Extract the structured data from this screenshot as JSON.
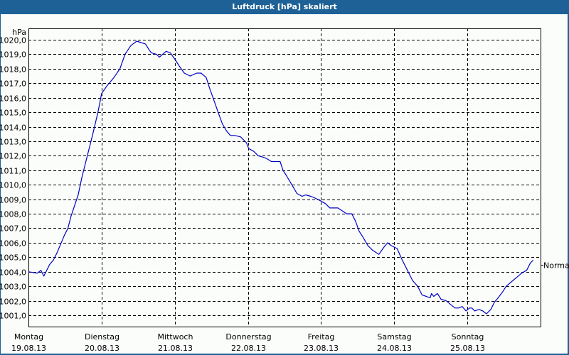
{
  "window": {
    "title": "Luftdruck [hPa] skaliert",
    "title_bar_color": "#1d6196",
    "background_color": "#fbfdfb"
  },
  "chart_data": {
    "type": "line",
    "title": "Luftdruck [hPa] skaliert",
    "xlabel": "",
    "ylabel": "hPa",
    "ylim": [
      1000.2,
      1020.8
    ],
    "y_ticks": [
      "1020,0",
      "1019,0",
      "1018,0",
      "1017,0",
      "1016,0",
      "1015,0",
      "1014,0",
      "1013,0",
      "1012,0",
      "1011,0",
      "1010,0",
      "1009,0",
      "1008,0",
      "1007,0",
      "1006,0",
      "1005,0",
      "1004,0",
      "1003,0",
      "1002,0",
      "1001,0"
    ],
    "y_tick_values": [
      1020,
      1019,
      1018,
      1017,
      1016,
      1015,
      1014,
      1013,
      1012,
      1011,
      1010,
      1009,
      1008,
      1007,
      1006,
      1005,
      1004,
      1003,
      1002,
      1001
    ],
    "x_ticks": [
      {
        "day": "Montag",
        "date": "19.08.13"
      },
      {
        "day": "Dienstag",
        "date": "20.08.13"
      },
      {
        "day": "Mittwoch",
        "date": "21.08.13"
      },
      {
        "day": "Donnerstag",
        "date": "22.08.13"
      },
      {
        "day": "Freitag",
        "date": "23.08.13"
      },
      {
        "day": "Samstag",
        "date": "24.08.13"
      },
      {
        "day": "Sonntag",
        "date": "25.08.13"
      }
    ],
    "xlim_days": [
      0,
      7
    ],
    "grid": true,
    "grid_style": "dashed",
    "reference_line": {
      "label": "Normal",
      "value": 1004.5
    },
    "series": [
      {
        "name": "Luftdruck",
        "color": "#0000c8",
        "x_days": [
          0.0,
          0.12,
          0.17,
          0.21,
          0.29,
          0.34,
          0.39,
          0.49,
          0.54,
          0.58,
          0.68,
          0.73,
          0.78,
          0.88,
          0.95,
          1.0,
          1.07,
          1.17,
          1.25,
          1.32,
          1.4,
          1.48,
          1.6,
          1.65,
          1.68,
          1.75,
          1.79,
          1.88,
          1.94,
          2.01,
          2.06,
          2.13,
          2.21,
          2.3,
          2.36,
          2.43,
          2.48,
          2.53,
          2.6,
          2.65,
          2.71,
          2.76,
          2.82,
          2.9,
          2.98,
          3.01,
          3.08,
          3.14,
          3.21,
          3.26,
          3.32,
          3.36,
          3.44,
          3.48,
          3.53,
          3.6,
          3.67,
          3.74,
          3.79,
          3.86,
          3.91,
          3.99,
          4.06,
          4.12,
          4.23,
          4.35,
          4.42,
          4.47,
          4.52,
          4.57,
          4.64,
          4.7,
          4.79,
          4.86,
          4.91,
          4.96,
          5.04,
          5.1,
          5.18,
          5.25,
          5.32,
          5.38,
          5.44,
          5.49,
          5.51,
          5.54,
          5.59,
          5.64,
          5.71,
          5.78,
          5.83,
          5.88,
          5.93,
          5.98,
          6.03,
          6.06,
          6.1,
          6.16,
          6.21,
          6.26,
          6.32,
          6.37,
          6.42,
          6.48,
          6.53,
          6.6,
          6.67,
          6.74,
          6.81,
          6.86,
          6.9
        ],
        "values": [
          1004.0,
          1003.9,
          1004.1,
          1003.7,
          1004.5,
          1004.8,
          1005.3,
          1006.5,
          1007.0,
          1007.8,
          1009.3,
          1010.5,
          1011.5,
          1013.5,
          1015.0,
          1016.3,
          1016.8,
          1017.4,
          1018.0,
          1019.0,
          1019.6,
          1019.9,
          1019.7,
          1019.3,
          1019.1,
          1019.0,
          1018.8,
          1019.2,
          1019.1,
          1018.6,
          1018.2,
          1017.7,
          1017.5,
          1017.7,
          1017.7,
          1017.4,
          1016.6,
          1015.9,
          1014.9,
          1014.2,
          1013.7,
          1013.4,
          1013.4,
          1013.3,
          1012.9,
          1012.5,
          1012.3,
          1012.0,
          1011.9,
          1011.8,
          1011.6,
          1011.6,
          1011.6,
          1011.0,
          1010.6,
          1010.0,
          1009.4,
          1009.2,
          1009.3,
          1009.2,
          1009.1,
          1008.9,
          1008.7,
          1008.4,
          1008.4,
          1008.0,
          1008.0,
          1007.5,
          1006.8,
          1006.4,
          1005.8,
          1005.5,
          1005.2,
          1005.7,
          1006.0,
          1005.8,
          1005.6,
          1004.9,
          1004.1,
          1003.4,
          1003.0,
          1002.4,
          1002.3,
          1002.2,
          1002.5,
          1002.3,
          1002.5,
          1002.1,
          1002.0,
          1001.7,
          1001.5,
          1001.5,
          1001.6,
          1001.3,
          1001.5,
          1001.5,
          1001.3,
          1001.4,
          1001.3,
          1001.1,
          1001.4,
          1001.9,
          1002.2,
          1002.6,
          1003.0,
          1003.3,
          1003.6,
          1003.9,
          1004.1,
          1004.6,
          1004.8
        ]
      }
    ]
  }
}
